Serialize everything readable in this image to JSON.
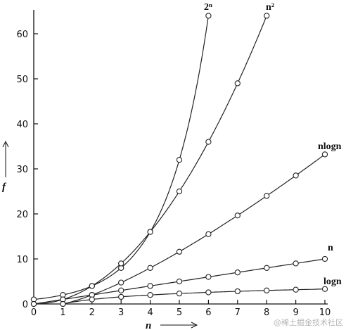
{
  "chart_data": {
    "type": "line",
    "xlabel": "n",
    "ylabel": "f",
    "xlim": [
      0,
      10
    ],
    "ylim": [
      0,
      65
    ],
    "xticks": [
      "0",
      "1",
      "2",
      "3",
      "4",
      "5",
      "6",
      "7",
      "8",
      "9",
      "10"
    ],
    "yticks": [
      "0",
      "10",
      "20",
      "30",
      "40",
      "50",
      "60"
    ],
    "grid": false,
    "series": [
      {
        "name": "2ⁿ",
        "x": [
          0,
          1,
          2,
          3,
          4,
          5,
          6
        ],
        "y": [
          1,
          2,
          4,
          8,
          16,
          32,
          64
        ]
      },
      {
        "name": "n²",
        "x": [
          0,
          1,
          2,
          3,
          4,
          5,
          6,
          7,
          8
        ],
        "y": [
          0,
          1,
          4,
          9,
          16,
          25,
          36,
          49,
          64
        ]
      },
      {
        "name": "nlogn",
        "x": [
          1,
          2,
          3,
          4,
          5,
          6,
          7,
          8,
          9,
          10
        ],
        "y": [
          0,
          2,
          4.75,
          8,
          11.6,
          15.5,
          19.65,
          24,
          28.53,
          33.22
        ]
      },
      {
        "name": "n",
        "x": [
          0,
          1,
          2,
          3,
          4,
          5,
          6,
          7,
          8,
          9,
          10
        ],
        "y": [
          0,
          1,
          2,
          3,
          4,
          5,
          6,
          7,
          8,
          9,
          10
        ]
      },
      {
        "name": "logn",
        "x": [
          1,
          2,
          3,
          4,
          5,
          6,
          7,
          8,
          9,
          10
        ],
        "y": [
          0,
          1,
          1.58,
          2,
          2.32,
          2.58,
          2.81,
          3,
          3.17,
          3.32
        ]
      }
    ]
  },
  "watermark": "@稀土掘金技术社区"
}
